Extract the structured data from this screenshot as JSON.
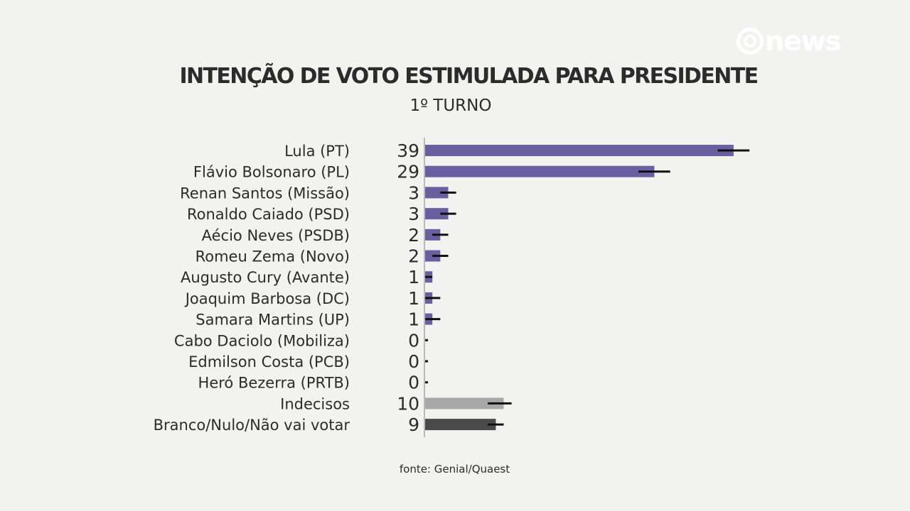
{
  "header": {
    "logo_text": "news",
    "title": "INTENÇÃO DE VOTO ESTIMULADA PARA PRESIDENTE",
    "subtitle": "1º TURNO"
  },
  "footer": {
    "source": "fonte: Genial/Quaest"
  },
  "colors": {
    "candidate": "#6a5fa0",
    "undecided": "#a8a8a8",
    "blank": "#4a4a4a",
    "error_bar": "#111111",
    "axis": "#b9b9b9"
  },
  "chart_data": {
    "type": "bar",
    "orientation": "horizontal",
    "title": "INTENÇÃO DE VOTO ESTIMULADA PARA PRESIDENTE",
    "subtitle": "1º TURNO",
    "xlabel": "",
    "ylabel": "",
    "xlim": [
      0,
      40
    ],
    "grid": false,
    "legend": "none",
    "unit": "%",
    "margin_of_error": 2,
    "categories": [
      "Lula (PT)",
      "Flávio Bolsonaro (PL)",
      "Renan Santos (Missão)",
      "Ronaldo Caiado (PSD)",
      "Aécio Neves (PSDB)",
      "Romeu Zema (Novo)",
      "Augusto Cury (Avante)",
      "Joaquim Barbosa (DC)",
      "Samara Martins (UP)",
      "Cabo Daciolo (Mobiliza)",
      "Edmilson Costa (PCB)",
      "Heró Bezerra (PRTB)",
      "Indecisos",
      "Branco/Nulo/Não vai votar"
    ],
    "values": [
      39,
      29,
      3,
      3,
      2,
      2,
      1,
      1,
      1,
      0,
      0,
      0,
      10,
      9
    ],
    "bar_values": [
      39,
      29,
      3,
      3,
      2,
      2,
      1,
      1,
      1,
      0,
      0,
      0,
      10,
      9
    ],
    "error_low": [
      37,
      27,
      2,
      2,
      1,
      1,
      0,
      0,
      0,
      0,
      0,
      0,
      8,
      8
    ],
    "error_high": [
      41,
      31,
      4,
      4,
      3,
      3,
      1,
      2,
      2,
      0,
      0,
      0,
      11,
      10
    ],
    "bar_groups": [
      "candidate",
      "candidate",
      "candidate",
      "candidate",
      "candidate",
      "candidate",
      "candidate",
      "candidate",
      "candidate",
      "candidate",
      "candidate",
      "candidate",
      "undecided",
      "blank"
    ]
  }
}
